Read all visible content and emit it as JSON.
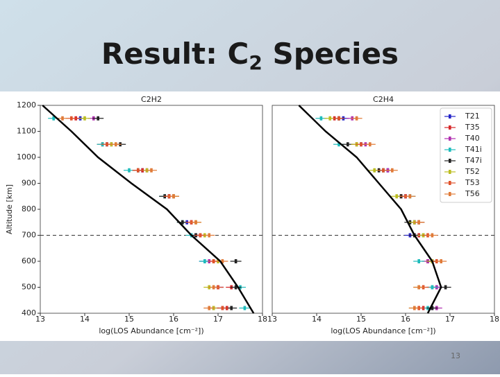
{
  "slide": {
    "title_main": "Result: C",
    "title_sub": "2",
    "title_end": " Species",
    "page_number": "13"
  },
  "chart_data": [
    {
      "type": "profile",
      "title": "C2H2",
      "xlabel": "log(LOS Abundance [cm⁻²])",
      "ylabel": "Altitude [km]",
      "xlim": [
        13,
        18
      ],
      "ylim": [
        400,
        1200
      ],
      "xticks": [
        13,
        14,
        15,
        16,
        17,
        18
      ],
      "yticks": [
        400,
        500,
        600,
        700,
        800,
        900,
        1000,
        1100,
        1200
      ],
      "hline": 700,
      "y": [
        1150,
        1050,
        950,
        850,
        750,
        700,
        600,
        500,
        420
      ],
      "series": [
        {
          "name": "T21",
          "color": "#2323c8",
          "values": [
            13.9,
            14.5,
            15.3,
            15.9,
            16.3,
            16.5,
            16.7,
            17.0,
            17.1
          ]
        },
        {
          "name": "T35",
          "color": "#d62728",
          "values": [
            13.8,
            14.4,
            15.3,
            15.9,
            16.4,
            16.6,
            16.9,
            17.3,
            17.2
          ]
        },
        {
          "name": "T40",
          "color": "#b02fb0",
          "values": [
            14.2,
            14.6,
            15.4,
            16.0,
            16.4,
            16.6,
            16.8,
            17.0,
            16.9
          ]
        },
        {
          "name": "T41i",
          "color": "#1fbcbc",
          "values": [
            13.3,
            14.4,
            15.0,
            15.8,
            16.2,
            16.4,
            16.7,
            17.5,
            17.6
          ]
        },
        {
          "name": "T47i",
          "color": "#222222",
          "values": [
            14.3,
            14.8,
            15.2,
            15.8,
            16.2,
            16.5,
            17.4,
            17.4,
            17.3
          ]
        },
        {
          "name": "T52",
          "color": "#bcbd22",
          "values": [
            14.0,
            14.6,
            15.4,
            16.0,
            16.5,
            16.7,
            17.0,
            16.8,
            16.9
          ]
        },
        {
          "name": "T53",
          "color": "#e0522a",
          "values": [
            13.7,
            14.5,
            15.2,
            15.9,
            16.4,
            16.6,
            16.9,
            17.0,
            17.1
          ]
        },
        {
          "name": "T56",
          "color": "#e07b39",
          "values": [
            13.5,
            14.7,
            15.5,
            16.0,
            16.5,
            16.8,
            17.1,
            16.9,
            16.8
          ]
        }
      ],
      "model": {
        "color": "#000000",
        "y": [
          1200,
          1100,
          1000,
          900,
          800,
          700,
          600,
          500,
          400
        ],
        "values": [
          13.05,
          13.7,
          14.3,
          15.05,
          15.85,
          16.4,
          17.05,
          17.45,
          17.8
        ]
      }
    },
    {
      "type": "profile",
      "title": "C2H4",
      "xlabel": "log(LOS Abundance [cm⁻²])",
      "legend": "upper right",
      "xlim": [
        13,
        18
      ],
      "ylim": [
        400,
        1200
      ],
      "xticks": [
        13,
        14,
        15,
        16,
        17,
        18
      ],
      "hline": 700,
      "y": [
        1150,
        1050,
        950,
        850,
        750,
        700,
        600,
        500,
        420
      ],
      "series": [
        {
          "name": "T21",
          "color": "#2323c8",
          "values": [
            14.6,
            15.0,
            15.6,
            16.0,
            16.2,
            16.1,
            16.6,
            16.7,
            16.6
          ]
        },
        {
          "name": "T35",
          "color": "#d62728",
          "values": [
            14.4,
            14.9,
            15.5,
            15.9,
            16.3,
            16.3,
            16.5,
            16.6,
            16.4
          ]
        },
        {
          "name": "T40",
          "color": "#b02fb0",
          "values": [
            14.8,
            15.1,
            15.6,
            16.0,
            16.2,
            16.2,
            16.5,
            16.7,
            16.7
          ]
        },
        {
          "name": "T41i",
          "color": "#1fbcbc",
          "values": [
            14.1,
            14.5,
            15.5,
            16.1,
            16.3,
            16.4,
            16.3,
            16.6,
            16.5
          ]
        },
        {
          "name": "T47i",
          "color": "#222222",
          "values": [
            14.5,
            14.7,
            15.4,
            15.9,
            16.1,
            16.2,
            16.6,
            16.9,
            16.6
          ]
        },
        {
          "name": "T52",
          "color": "#bcbd22",
          "values": [
            14.3,
            14.9,
            15.3,
            15.8,
            16.2,
            16.4,
            16.6,
            16.3,
            16.2
          ]
        },
        {
          "name": "T53",
          "color": "#e0522a",
          "values": [
            14.5,
            15.0,
            15.5,
            16.0,
            16.3,
            16.5,
            16.7,
            16.4,
            16.3
          ]
        },
        {
          "name": "T56",
          "color": "#e07b39",
          "values": [
            14.9,
            15.2,
            15.7,
            16.1,
            16.3,
            16.6,
            16.8,
            16.3,
            16.2
          ]
        }
      ],
      "model": {
        "color": "#000000",
        "y": [
          1200,
          1100,
          1000,
          900,
          800,
          700,
          600,
          500,
          400
        ],
        "values": [
          13.6,
          14.2,
          14.9,
          15.4,
          15.9,
          16.2,
          16.6,
          16.8,
          16.5
        ]
      }
    }
  ]
}
